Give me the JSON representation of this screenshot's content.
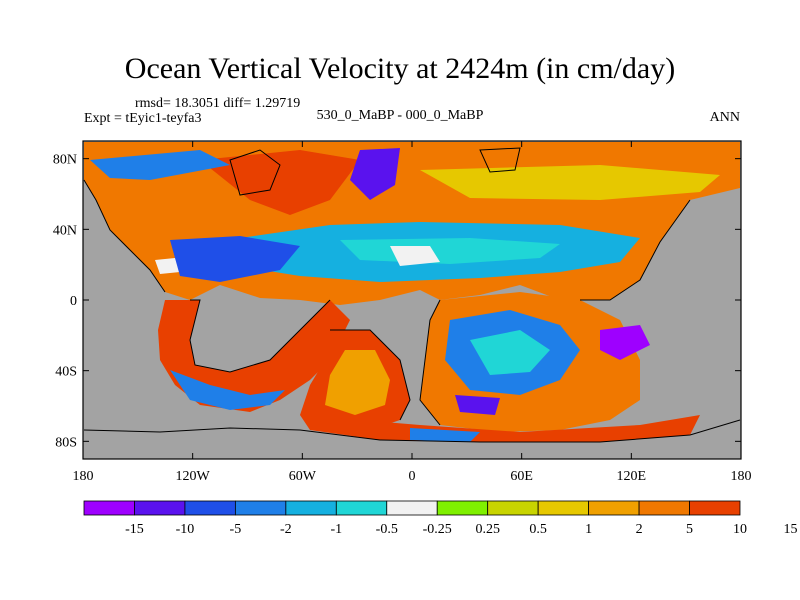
{
  "title": "Ocean Vertical Velocity at 2424m (in cm/day)",
  "stats_line": "rmsd= 18.3051 diff= 1.29719",
  "expt_line": "Expt = tEyic1-teyfa3",
  "case_line": "530_0_MaBP - 000_0_MaBP",
  "season": "ANN",
  "colors": {
    "land": "#a3a3a3",
    "palette": [
      "#9e00ff",
      "#5a12ee",
      "#1f4fe8",
      "#1f7fe8",
      "#15b0e0",
      "#20d6d6",
      "#f2f2f2",
      "#7ff000",
      "#c8d400",
      "#e6c800",
      "#f0a000",
      "#f07800",
      "#e84000"
    ]
  },
  "chart_data": {
    "type": "heatmap",
    "title": "Ocean Vertical Velocity at 2424m (in cm/day)",
    "xlabel": "",
    "ylabel": "",
    "xlim": [
      -180,
      180
    ],
    "ylim": [
      -90,
      90
    ],
    "x_ticks": [
      {
        "value": -180,
        "label": "180"
      },
      {
        "value": -120,
        "label": "120W"
      },
      {
        "value": -60,
        "label": "60W"
      },
      {
        "value": 0,
        "label": "0"
      },
      {
        "value": 60,
        "label": "60E"
      },
      {
        "value": 120,
        "label": "120E"
      },
      {
        "value": 180,
        "label": "180"
      }
    ],
    "y_ticks": [
      {
        "value": 80,
        "label": "80N"
      },
      {
        "value": 40,
        "label": "40N"
      },
      {
        "value": 0,
        "label": "0"
      },
      {
        "value": -40,
        "label": "40S"
      },
      {
        "value": -80,
        "label": "80S"
      }
    ],
    "colorbar": {
      "levels": [
        "-15",
        "-10",
        "-5",
        "-2",
        "-1",
        "-0.5",
        "-0.25",
        "0.25",
        "0.5",
        "1",
        "2",
        "5",
        "10",
        "15"
      ],
      "units": "cm/day"
    }
  }
}
